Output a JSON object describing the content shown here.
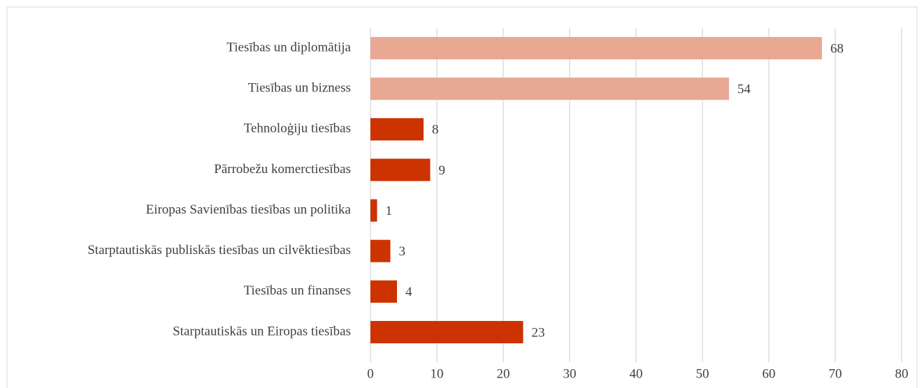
{
  "chart_data": {
    "type": "bar",
    "orientation": "horizontal",
    "categories": [
      "Tiesības un diplomātija",
      "Tiesības un bizness",
      "Tehnoloģiju tiesības",
      "Pārrobežu komerctiesības",
      "Eiropas Savienības tiesības un politika",
      "Starptautiskās publiskās tiesības un cilvēktiesības",
      "Tiesības un finanses",
      "Starptautiskās un Eiropas tiesības"
    ],
    "values": [
      68,
      54,
      8,
      9,
      1,
      3,
      4,
      23
    ],
    "colors": [
      "#e9a893",
      "#e9a893",
      "#cc3300",
      "#cc3300",
      "#cc3300",
      "#cc3300",
      "#cc3300",
      "#cc3300"
    ],
    "xlim": [
      0,
      80
    ],
    "xticks": [
      0,
      10,
      20,
      30,
      40,
      50,
      60,
      70,
      80
    ],
    "grid": true
  }
}
